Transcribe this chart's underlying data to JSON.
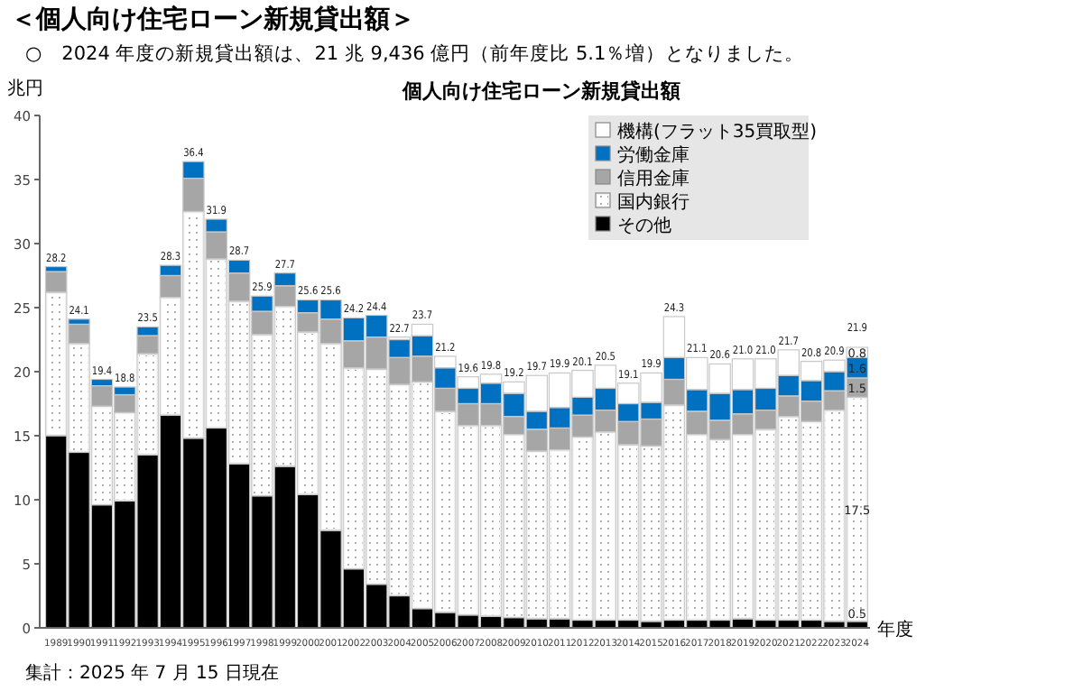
{
  "chart_data": {
    "type": "bar",
    "stacked": true,
    "title": "＜個人向け住宅ローン新規貸出額＞",
    "subtitle": "○　2024 年度の新規貸出額は、21 兆 9,436 億円（前年度比 5.1％増）となりました。",
    "annotations": [
      "個人向け住宅ローン新規貸出額",
      "集計：2025 年 7 月 15 日現在"
    ],
    "ylabel": "兆円",
    "xlabel": "年度",
    "legend": "top right",
    "ylim": [
      0,
      40
    ],
    "yticks": [
      0,
      5,
      10,
      15,
      20,
      25,
      30,
      35,
      40
    ],
    "categories": [
      "1989",
      "1990",
      "1991",
      "1992",
      "1993",
      "1994",
      "1995",
      "1996",
      "1997",
      "1998",
      "1999",
      "2000",
      "2001",
      "2002",
      "2003",
      "2004",
      "2005",
      "2006",
      "2007",
      "2008",
      "2009",
      "2010",
      "2011",
      "2012",
      "2013",
      "2014",
      "2015",
      "2016",
      "2017",
      "2018",
      "2019",
      "2020",
      "2021",
      "2022",
      "2023",
      "2024"
    ],
    "series": [
      {
        "name": "その他",
        "color": "#000000",
        "values": [
          15.0,
          13.7,
          9.6,
          9.9,
          13.5,
          16.6,
          14.8,
          15.6,
          12.8,
          10.3,
          12.6,
          10.4,
          7.6,
          4.6,
          3.4,
          2.5,
          1.5,
          1.2,
          1.0,
          0.9,
          0.8,
          0.7,
          0.7,
          0.6,
          0.6,
          0.6,
          0.5,
          0.6,
          0.6,
          0.6,
          0.7,
          0.6,
          0.6,
          0.6,
          0.5,
          0.5
        ],
        "value_labels": [
          null,
          null,
          null,
          null,
          null,
          null,
          null,
          null,
          null,
          null,
          null,
          null,
          null,
          null,
          null,
          null,
          null,
          null,
          null,
          null,
          null,
          null,
          null,
          null,
          null,
          null,
          null,
          null,
          null,
          null,
          null,
          null,
          null,
          null,
          null,
          "0.5"
        ]
      },
      {
        "name": "国内銀行",
        "color": "#f2f2f2",
        "values": [
          11.2,
          8.5,
          7.7,
          6.9,
          7.9,
          9.2,
          17.7,
          13.2,
          12.7,
          12.6,
          12.5,
          12.7,
          14.6,
          15.7,
          16.8,
          16.5,
          17.7,
          15.7,
          14.8,
          14.9,
          14.3,
          13.1,
          13.2,
          14.3,
          14.7,
          13.7,
          13.7,
          16.8,
          14.5,
          14.1,
          14.4,
          14.9,
          15.9,
          15.5,
          16.5,
          17.5
        ],
        "value_labels": [
          null,
          null,
          null,
          null,
          null,
          null,
          null,
          null,
          null,
          null,
          null,
          null,
          null,
          null,
          null,
          null,
          null,
          null,
          null,
          null,
          null,
          null,
          null,
          null,
          null,
          null,
          null,
          null,
          null,
          null,
          null,
          null,
          null,
          null,
          null,
          "17.5"
        ]
      },
      {
        "name": "信用金庫",
        "color": "#a6a6a6",
        "values": [
          1.6,
          1.5,
          1.6,
          1.4,
          1.4,
          1.7,
          2.6,
          2.1,
          2.2,
          1.8,
          1.6,
          1.5,
          1.9,
          2.1,
          2.5,
          2.1,
          2.0,
          1.8,
          1.7,
          1.7,
          1.4,
          1.7,
          1.7,
          1.7,
          1.7,
          1.8,
          2.1,
          2.0,
          1.8,
          1.5,
          1.6,
          1.5,
          1.6,
          1.6,
          1.5,
          1.5
        ],
        "value_labels": [
          null,
          null,
          null,
          null,
          null,
          null,
          null,
          null,
          null,
          null,
          null,
          null,
          null,
          null,
          null,
          null,
          null,
          null,
          null,
          null,
          null,
          null,
          null,
          null,
          null,
          null,
          null,
          null,
          null,
          null,
          null,
          null,
          null,
          null,
          null,
          "1.5"
        ]
      },
      {
        "name": "労働金庫",
        "color": "#0070c0",
        "values": [
          0.4,
          0.4,
          0.5,
          0.6,
          0.7,
          0.8,
          1.3,
          1.0,
          1.0,
          1.2,
          1.0,
          1.0,
          1.5,
          1.8,
          1.7,
          1.4,
          1.6,
          1.6,
          1.2,
          1.6,
          1.8,
          1.4,
          1.6,
          1.4,
          1.7,
          1.4,
          1.3,
          1.7,
          1.7,
          2.1,
          1.9,
          1.7,
          1.6,
          1.6,
          1.5,
          1.6
        ],
        "value_labels": [
          null,
          null,
          null,
          null,
          null,
          null,
          null,
          null,
          null,
          null,
          null,
          null,
          null,
          null,
          null,
          null,
          null,
          null,
          null,
          null,
          null,
          null,
          null,
          null,
          null,
          null,
          null,
          null,
          null,
          null,
          null,
          null,
          null,
          null,
          null,
          "1.6"
        ]
      },
      {
        "name": "機構(フラット35買取型)",
        "color": "#ffffff",
        "values": [
          0,
          0,
          0,
          0,
          0,
          0,
          0,
          0,
          0,
          0,
          0,
          0,
          0,
          0,
          0,
          0.2,
          0.9,
          0.9,
          0.9,
          0.7,
          0.9,
          2.8,
          2.7,
          2.1,
          1.8,
          1.6,
          2.3,
          3.2,
          2.5,
          2.3,
          2.4,
          2.3,
          2.0,
          1.5,
          0.9,
          0.8
        ],
        "value_labels": [
          null,
          null,
          null,
          null,
          null,
          null,
          null,
          null,
          null,
          null,
          null,
          null,
          null,
          null,
          null,
          null,
          null,
          null,
          null,
          null,
          null,
          null,
          null,
          null,
          null,
          null,
          null,
          null,
          null,
          null,
          null,
          null,
          null,
          null,
          null,
          "0.8"
        ]
      }
    ],
    "totals": [
      "28.2",
      "24.1",
      "19.4",
      "18.8",
      "23.5",
      "28.3",
      "36.4",
      "31.9",
      "28.7",
      "25.9",
      "27.7",
      "25.6",
      "25.6",
      "24.2",
      "24.4",
      "22.7",
      "23.7",
      "21.2",
      "19.6",
      "19.8",
      "19.2",
      "19.7",
      "19.9",
      "20.1",
      "20.5",
      "19.1",
      "19.9",
      "24.3",
      "21.1",
      "20.6",
      "21.0",
      "21.0",
      "21.7",
      "20.8",
      "20.9",
      "21.9"
    ]
  }
}
